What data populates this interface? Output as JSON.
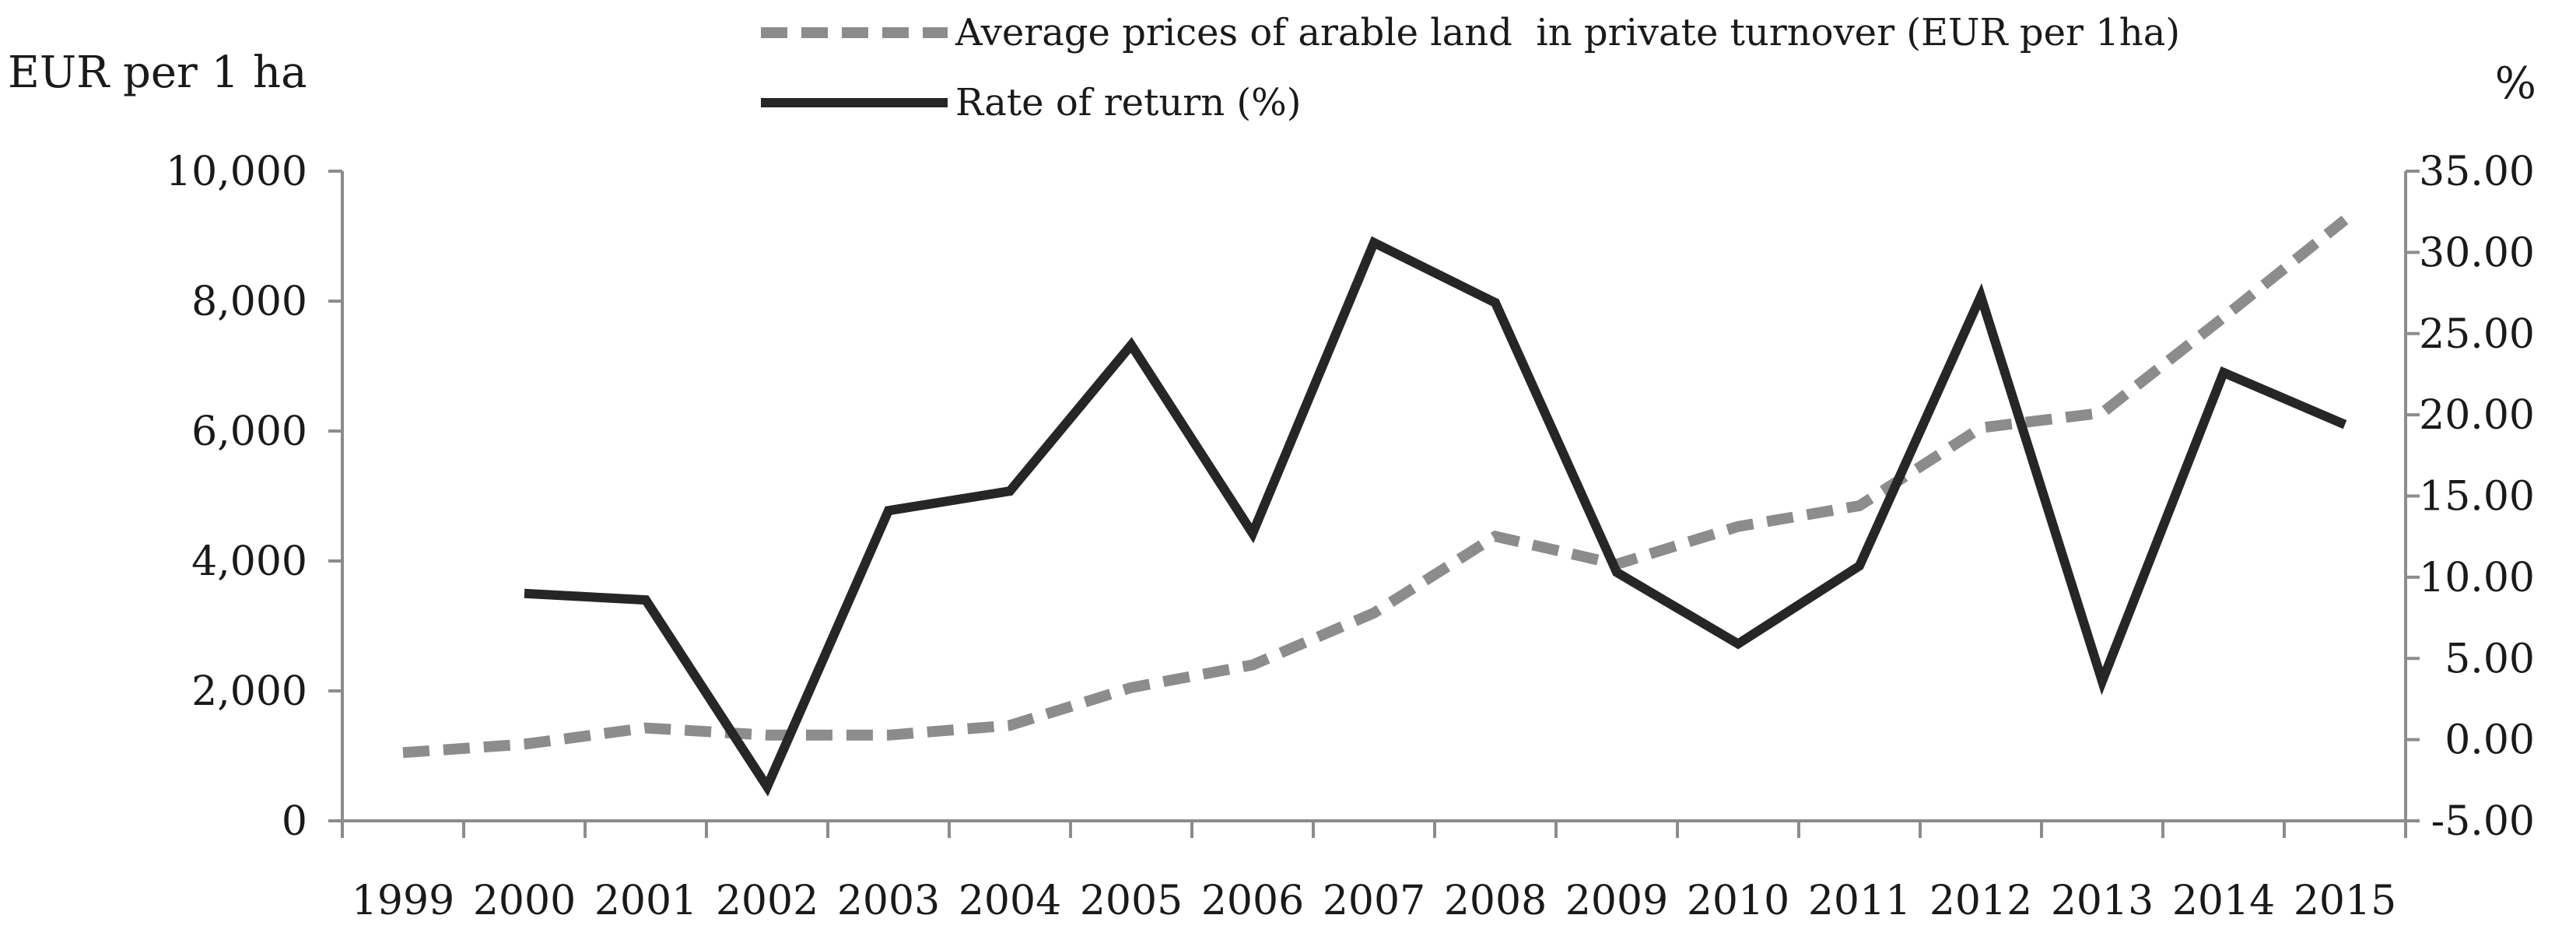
{
  "chart_data": {
    "type": "line",
    "categories": [
      "1999",
      "2000",
      "2001",
      "2002",
      "2003",
      "2004",
      "2005",
      "2006",
      "2007",
      "2008",
      "2009",
      "2010",
      "2011",
      "2012",
      "2013",
      "2014",
      "2015"
    ],
    "y_left": {
      "label": "EUR per 1 ha",
      "ylim": [
        0,
        10000
      ],
      "ticks": [
        0,
        2000,
        4000,
        6000,
        8000,
        10000
      ],
      "tick_labels": [
        "0",
        "2,000",
        "4,000",
        "6,000",
        "8,000",
        "10,000"
      ]
    },
    "y_right": {
      "label": "%",
      "ylim": [
        -5,
        35
      ],
      "ticks": [
        -5,
        0,
        5,
        10,
        15,
        20,
        25,
        30,
        35
      ],
      "tick_labels": [
        "-5.00",
        "0.00",
        "5.00",
        "10.00",
        "15.00",
        "20.00",
        "25.00",
        "30.00",
        "35.00"
      ]
    },
    "series": [
      {
        "name": "Average prices of arable land  in private turnover (EUR per 1ha)",
        "axis": "left",
        "style": "dashed",
        "color": "#8c8c8c",
        "values": [
          1050,
          1180,
          1430,
          1320,
          1320,
          1470,
          2050,
          2400,
          3200,
          4380,
          3950,
          4530,
          4850,
          6050,
          6280,
          7750,
          9250
        ]
      },
      {
        "name": "Rate of return (%)",
        "axis": "right",
        "style": "solid",
        "color": "#262626",
        "values": [
          null,
          9.0,
          8.6,
          -2.9,
          14.1,
          15.3,
          24.3,
          12.7,
          30.6,
          26.9,
          10.3,
          5.9,
          10.7,
          27.3,
          3.6,
          22.6,
          19.4
        ]
      }
    ],
    "legend_position": "top-center",
    "grid": false
  }
}
